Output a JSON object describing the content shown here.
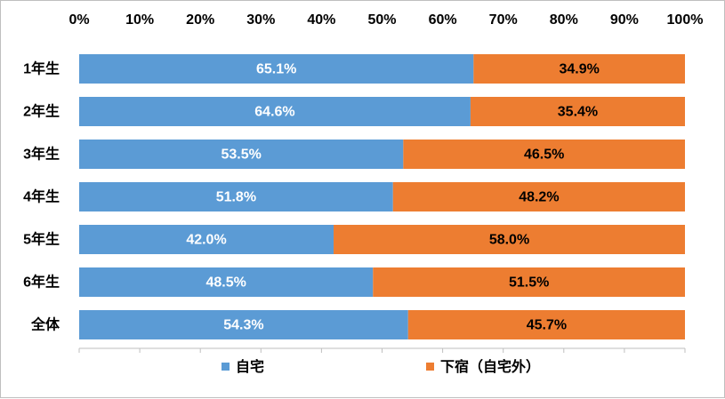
{
  "chart_data": {
    "type": "bar",
    "orientation": "horizontal",
    "stacked": true,
    "percent_axis": true,
    "categories": [
      "1年生",
      "2年生",
      "3年生",
      "4年生",
      "5年生",
      "6年生",
      "全体"
    ],
    "series": [
      {
        "name": "自宅",
        "values": [
          65.1,
          64.6,
          53.5,
          51.8,
          42.0,
          48.5,
          54.3
        ],
        "labels": [
          "65.1%",
          "64.6%",
          "53.5%",
          "51.8%",
          "42.0%",
          "48.5%",
          "54.3%"
        ],
        "color": "#5b9bd5",
        "label_color": "#ffffff"
      },
      {
        "name": "下宿（自宅外）",
        "values": [
          34.9,
          35.4,
          46.5,
          48.2,
          58.0,
          51.5,
          45.7
        ],
        "labels": [
          "34.9%",
          "35.4%",
          "46.5%",
          "48.2%",
          "58.0%",
          "51.5%",
          "45.7%"
        ],
        "color": "#ed7d31",
        "label_color": "#000000"
      }
    ],
    "x_ticks": [
      "0%",
      "10%",
      "20%",
      "30%",
      "40%",
      "50%",
      "60%",
      "70%",
      "80%",
      "90%",
      "100%"
    ],
    "xlim": [
      0,
      100
    ],
    "x_axis_position": "top",
    "grid": false,
    "legend": "bottom"
  }
}
